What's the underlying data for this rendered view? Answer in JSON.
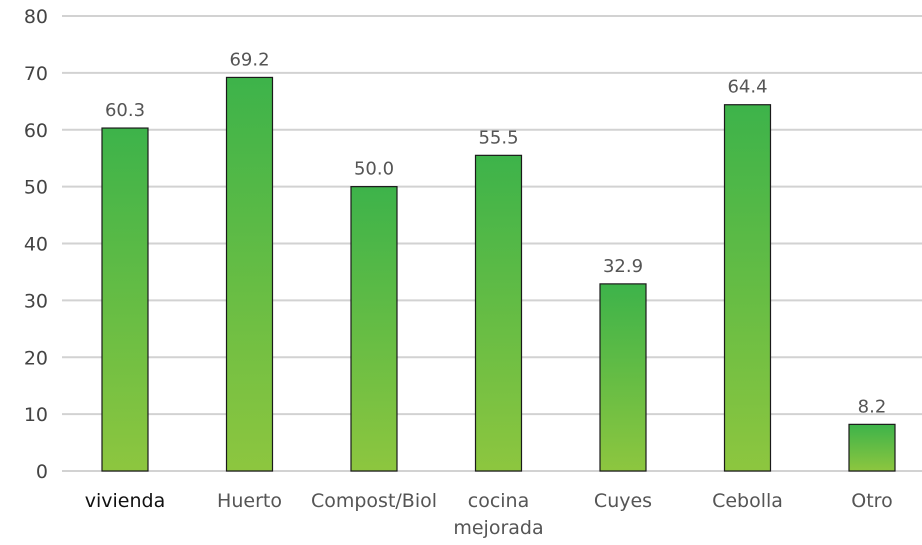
{
  "chart_data": {
    "type": "bar",
    "categories": [
      "vivienda",
      "Huerto",
      "Compost/Biol",
      "cocina mejorada",
      "Cuyes",
      "Cebolla",
      "Otro"
    ],
    "category_lines": [
      [
        "vivienda"
      ],
      [
        "Huerto"
      ],
      [
        "Compost/Biol"
      ],
      [
        "cocina",
        "mejorada"
      ],
      [
        "Cuyes"
      ],
      [
        "Cebolla"
      ],
      [
        "Otro"
      ]
    ],
    "values": [
      60.3,
      69.2,
      50.0,
      55.5,
      32.9,
      64.4,
      8.2
    ],
    "value_labels": [
      "60.3",
      "69.2",
      "50.0",
      "55.5",
      "32.9",
      "64.4",
      "8.2"
    ],
    "ylim": [
      0,
      80
    ],
    "yticks": [
      0,
      10,
      20,
      30,
      40,
      50,
      60,
      70,
      80
    ],
    "title": "",
    "xlabel": "",
    "ylabel": "",
    "grid": true,
    "legend": "none",
    "colors": {
      "bar_top": "#3db34a",
      "bar_bottom": "#8dc63f",
      "bar_outline": "#1a1a1a",
      "grid": "#d2d2d2"
    }
  }
}
